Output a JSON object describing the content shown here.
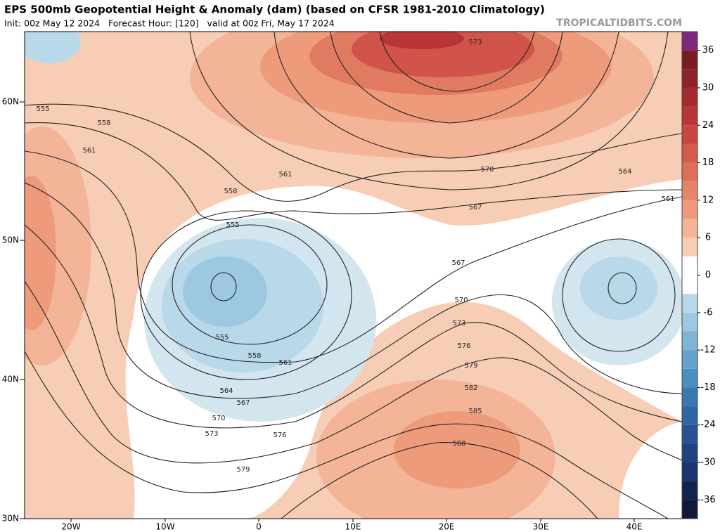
{
  "header": {
    "title": "EPS 500mb Geopotential Height & Anomaly (dam) (based on CFSR 1981-2010 Climatology)",
    "subtitle": "Init: 00z May 12 2024   Forecast Hour: [120]   valid at 00z Fri, May 17 2024",
    "source": "TROPICALTIDBITS.COM"
  },
  "map": {
    "lat_labels": [
      "60N",
      "50N",
      "40N",
      "30N"
    ],
    "lon_labels": [
      "20W",
      "10W",
      "0",
      "10E",
      "20E",
      "30E",
      "40E"
    ],
    "contour_labels": [
      "573",
      "555",
      "558",
      "561",
      "561",
      "558",
      "555",
      "570",
      "567",
      "564",
      "561",
      "567",
      "570",
      "573",
      "576",
      "579",
      "582",
      "585",
      "588",
      "555",
      "558",
      "561",
      "564",
      "567",
      "570",
      "573",
      "576",
      "579"
    ]
  },
  "colorbar": {
    "lim": [
      -39,
      39
    ],
    "bounds": [
      -39,
      -36,
      -33,
      -30,
      -27,
      -24,
      -21,
      -18,
      -15,
      -12,
      -9,
      -6,
      -3,
      0,
      3,
      6,
      9,
      12,
      15,
      18,
      21,
      24,
      27,
      30,
      33,
      36,
      39
    ],
    "colors": [
      "#101a38",
      "#0f2550",
      "#193470",
      "#1f4380",
      "#275490",
      "#2f65a0",
      "#3a78b0",
      "#4b8ec0",
      "#64a2cc",
      "#7fb5d7",
      "#9dc8e1",
      "#b9d8ea",
      "#ffffff",
      "#ffffff",
      "#f8cdb6",
      "#f3b497",
      "#ee9b7c",
      "#e68467",
      "#de6e56",
      "#d65a4a",
      "#c94640",
      "#b93538",
      "#a52a30",
      "#8e2228",
      "#7a1c22",
      "#7b2a80"
    ],
    "ticks": [
      -36,
      -30,
      -24,
      -18,
      -12,
      -6,
      0,
      6,
      12,
      18,
      24,
      30,
      36
    ]
  }
}
